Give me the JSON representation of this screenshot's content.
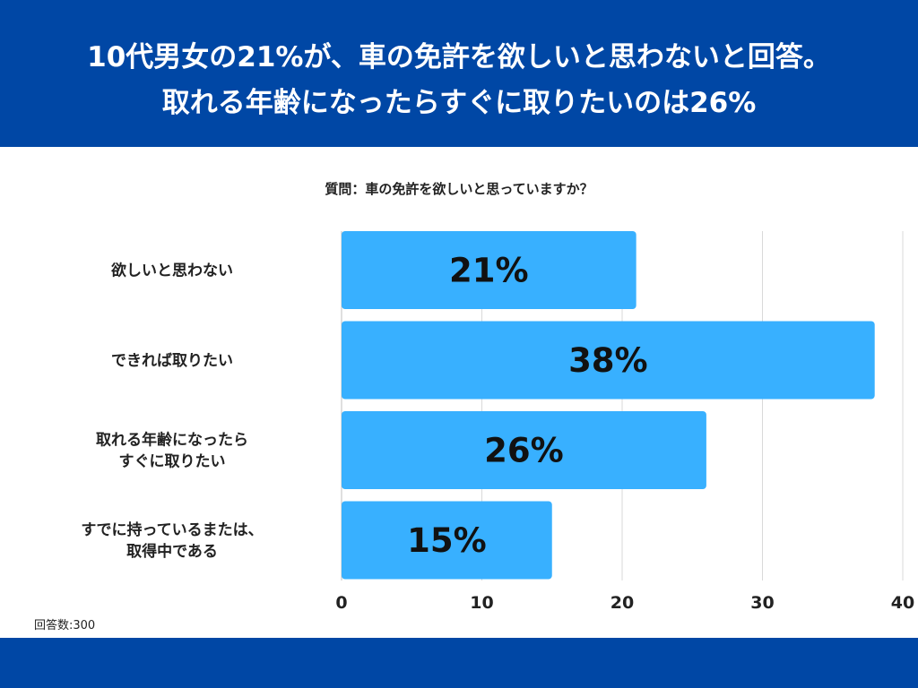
{
  "header": {
    "line1": "10代男女の21%が、車の免許を欲しいと思わないと回答。",
    "line2": "取れる年齢になったらすぐに取りたいのは26%"
  },
  "question": "質問：車の免許を欲しいと思っていますか？",
  "note": "回答数:300",
  "colors": {
    "header_bg": "#0047a5",
    "bar": "#38b0ff",
    "grid": "#d9d9d9",
    "text": "#222222"
  },
  "chart_data": {
    "type": "bar",
    "orientation": "horizontal",
    "title": "質問：車の免許を欲しいと思っていますか？",
    "xlabel": "",
    "ylabel": "",
    "grid": true,
    "categories": [
      [
        "欲しいと思わない"
      ],
      [
        "できれば取りたい"
      ],
      [
        "取れる年齢になったら",
        "すぐに取りたい"
      ],
      [
        "すでに持っているまたは、",
        "取得中である"
      ]
    ],
    "values": [
      21,
      38,
      26,
      15
    ],
    "data_labels": [
      "21%",
      "38%",
      "26%",
      "15%"
    ],
    "xlim": [
      0,
      40
    ],
    "xticks": [
      "0",
      "10",
      "20",
      "30",
      "40"
    ]
  }
}
